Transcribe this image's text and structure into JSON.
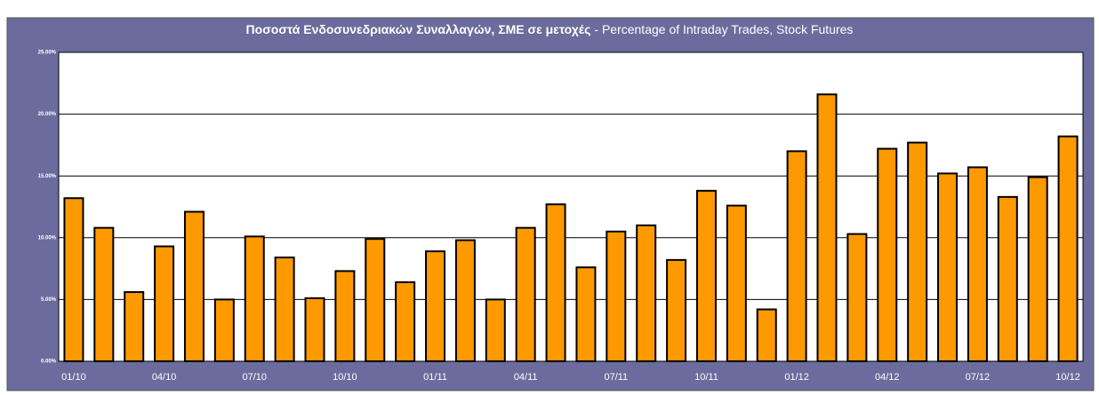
{
  "chart_data": {
    "type": "bar",
    "title": "Ποσοστά Ενδοσυνεδριακών Συναλλαγών, ΣΜΕ σε μετοχές",
    "subtitle": "- Percentage of Intraday Trades, Stock Futures",
    "categories": [
      "01/10",
      null,
      null,
      "04/10",
      null,
      null,
      "07/10",
      null,
      null,
      "10/10",
      null,
      null,
      "01/11",
      null,
      null,
      "04/11",
      null,
      null,
      "07/11",
      null,
      null,
      "10/11",
      null,
      null,
      "01/12",
      null,
      null,
      "04/12",
      null,
      null,
      "07/12",
      null,
      null,
      "10/12"
    ],
    "values": [
      13.2,
      10.8,
      5.6,
      9.3,
      12.1,
      5.0,
      10.1,
      8.4,
      5.1,
      7.3,
      9.9,
      6.4,
      8.9,
      9.8,
      5.0,
      10.8,
      12.7,
      7.6,
      10.5,
      11.0,
      8.2,
      13.8,
      12.6,
      4.2,
      17.0,
      21.6,
      10.3,
      17.2,
      17.7,
      15.2,
      15.7,
      13.3,
      14.9,
      18.2
    ],
    "color": "#ff9900",
    "ylim": [
      0,
      25
    ],
    "yticks": [
      {
        "value": 0,
        "label": "0.00%"
      },
      {
        "value": 5,
        "label": "5.00%"
      },
      {
        "value": 10,
        "label": "10.00%"
      },
      {
        "value": 15,
        "label": "15.00%"
      },
      {
        "value": 20,
        "label": "20.00%"
      },
      {
        "value": 25,
        "label": "25.00%"
      }
    ],
    "grid": true
  }
}
